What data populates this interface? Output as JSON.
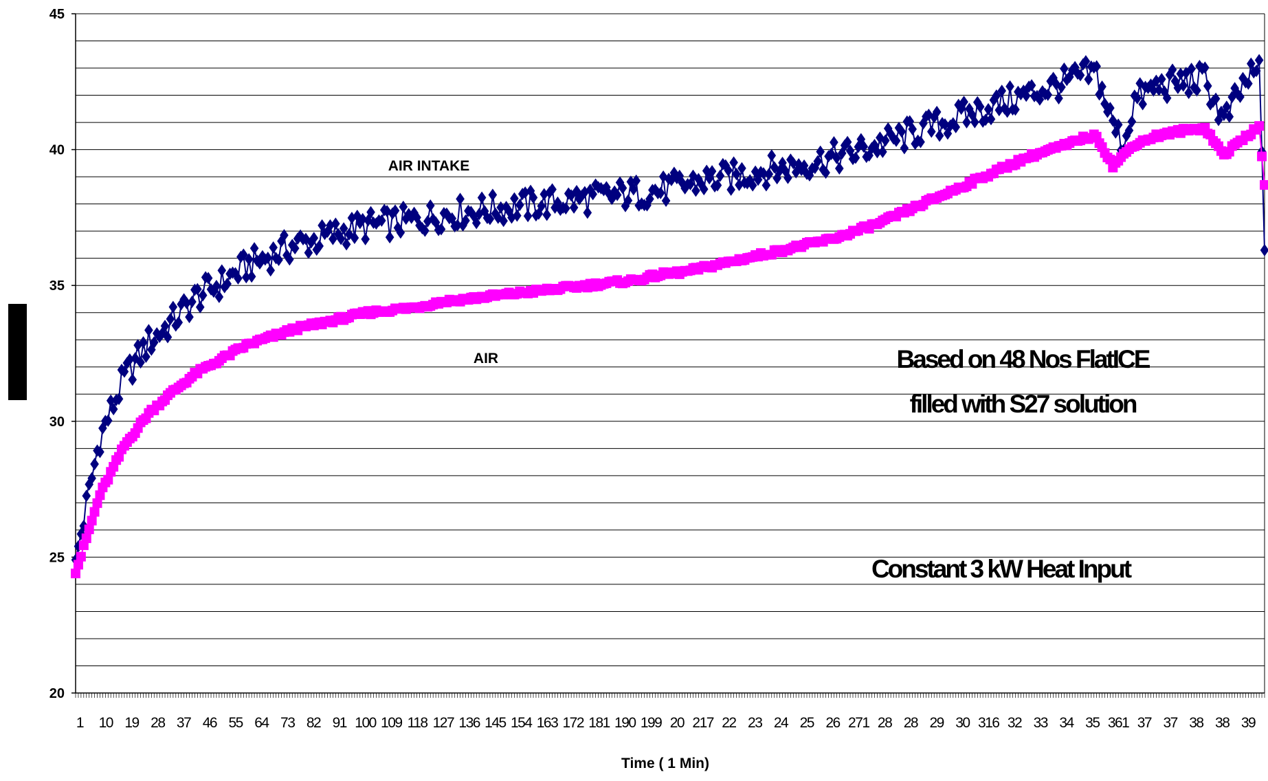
{
  "chart_data": {
    "type": "scatter",
    "title": "",
    "xlabel": "Time ( 1 Min)",
    "ylabel": "",
    "ylim": [
      20,
      45
    ],
    "y_ticks": [
      "20",
      "25",
      "30",
      "35",
      "40",
      "45"
    ],
    "y_minor_step": 1,
    "grid": true,
    "x_count": 440,
    "x_tick_labels": [
      "1",
      "10",
      "19",
      "28",
      "37",
      "46",
      "55",
      "64",
      "73",
      "82",
      "91",
      "100",
      "109",
      "118",
      "127",
      "136",
      "145",
      "154",
      "163",
      "172",
      "181",
      "190",
      "199",
      "20",
      "217",
      "22",
      "23",
      "24",
      "25",
      "26",
      "271",
      "28",
      "28",
      "29",
      "30",
      "316",
      "32",
      "33",
      "34",
      "35",
      "361",
      "37",
      "37",
      "38",
      "38",
      "39"
    ],
    "annotations": [
      "Based on 48 Nos FlatICE",
      "filled with S27 solution",
      "Constant 3 kW Heat Input"
    ],
    "series": [
      {
        "name": "AIR INTAKE",
        "color": "#00007f",
        "marker": "diamond",
        "x": [
          1,
          10,
          19,
          28,
          37,
          46,
          55,
          64,
          73,
          82,
          91,
          100,
          109,
          118,
          127,
          136,
          145,
          154,
          163,
          172,
          181,
          190,
          199,
          208,
          217,
          226,
          235,
          244,
          253,
          262,
          271,
          280,
          289,
          298,
          307,
          316,
          325,
          334,
          343,
          352,
          361,
          368,
          372,
          378,
          384,
          388,
          392,
          400,
          410,
          418,
          425,
          433,
          436,
          438,
          440
        ],
        "y": [
          24.9,
          29.4,
          31.6,
          32.9,
          33.7,
          34.6,
          35.1,
          35.7,
          36.1,
          36.5,
          36.7,
          37.0,
          37.2,
          37.3,
          37.4,
          37.6,
          37.7,
          37.8,
          37.9,
          38.0,
          38.1,
          38.2,
          38.3,
          38.4,
          38.5,
          38.7,
          38.9,
          39.0,
          39.2,
          39.3,
          39.5,
          39.7,
          39.9,
          40.2,
          40.5,
          40.8,
          41.1,
          41.4,
          41.7,
          42.0,
          42.3,
          42.5,
          42.7,
          42.8,
          40.9,
          40.2,
          41.8,
          42.3,
          42.5,
          42.6,
          41.0,
          42.5,
          42.7,
          43.0,
          36.3
        ]
      },
      {
        "name": "AIR",
        "color": "#ff00ff",
        "marker": "square",
        "x": [
          1,
          10,
          19,
          28,
          37,
          46,
          55,
          64,
          73,
          82,
          91,
          100,
          109,
          118,
          127,
          136,
          145,
          154,
          163,
          172,
          181,
          190,
          199,
          208,
          217,
          226,
          235,
          244,
          253,
          262,
          271,
          280,
          289,
          298,
          307,
          316,
          325,
          334,
          343,
          352,
          361,
          368,
          372,
          378,
          384,
          392,
          400,
          410,
          418,
          425,
          433,
          438,
          440
        ],
        "y": [
          24.4,
          27.3,
          29.1,
          30.3,
          31.1,
          31.8,
          32.3,
          32.8,
          33.1,
          33.4,
          33.6,
          33.8,
          34.0,
          34.1,
          34.2,
          34.4,
          34.5,
          34.6,
          34.7,
          34.8,
          34.9,
          35.0,
          35.1,
          35.2,
          35.4,
          35.5,
          35.7,
          35.9,
          36.1,
          36.3,
          36.5,
          36.7,
          37.0,
          37.3,
          37.7,
          38.1,
          38.5,
          38.9,
          39.3,
          39.7,
          40.0,
          40.2,
          40.4,
          40.5,
          39.4,
          40.2,
          40.5,
          40.7,
          40.8,
          39.8,
          40.5,
          40.8,
          38.7
        ]
      }
    ]
  }
}
